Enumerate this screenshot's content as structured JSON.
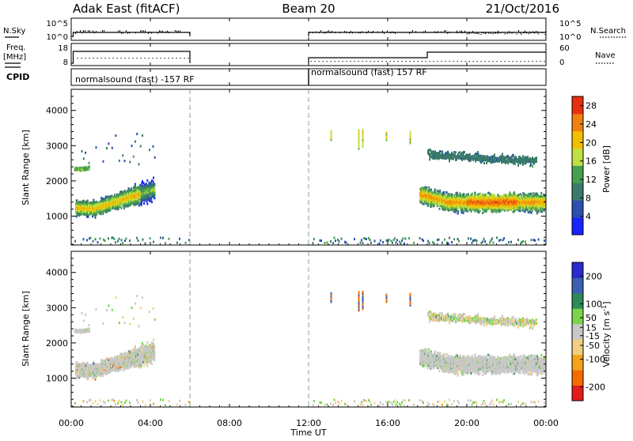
{
  "header": {
    "station": "Adak East (fitACF)",
    "beam": "Beam 20",
    "date": "21/Oct/2016"
  },
  "x_axis": {
    "label": "Time UT",
    "ticks": [
      "00:00",
      "04:00",
      "08:00",
      "12:00",
      "16:00",
      "20:00",
      "00:00"
    ]
  },
  "panels": {
    "nsky": {
      "label": "N.Sky",
      "right_label": "N.Search",
      "left_ticks": [
        "10^5",
        "10^0"
      ],
      "right_ticks": [
        "10^5",
        "10^0"
      ]
    },
    "freq": {
      "label_line1": "Freq.",
      "label_line2": "[MHz]",
      "right_label": "Nave",
      "left_ticks": [
        "18",
        "8"
      ],
      "right_ticks": [
        "60",
        "0"
      ]
    },
    "cpid": {
      "label": "CPID",
      "segments": [
        "normalsound (fast) -157 RF",
        "normalsound (fast) 157 RF"
      ]
    }
  },
  "colors": {
    "power": [
      "#1a22ff",
      "#2a4fb0",
      "#3a7a6a",
      "#46a050",
      "#bfe040",
      "#f2c000",
      "#f08010",
      "#e83010"
    ],
    "velocity": [
      "#e41a1c",
      "#f56b00",
      "#f7a21b",
      "#f0d080",
      "#c8c8c8",
      "#7ad44a",
      "#2e8a57",
      "#3c5fb0",
      "#2a2ad0"
    ]
  },
  "chart_data": [
    {
      "type": "heatmap",
      "name": "Power",
      "ylabel": "Slant Range [km]",
      "xlabel": "Time UT",
      "yticks": [
        1000,
        2000,
        3000,
        4000
      ],
      "ylim": [
        180,
        4600
      ],
      "xlim_hours": [
        0,
        24
      ],
      "colorbar_label": "Power [dB]",
      "colorbar_ticks": [
        4,
        8,
        12,
        16,
        20,
        24,
        28
      ],
      "colorbar_range": [
        0,
        30
      ],
      "echo_regions": [
        {
          "t_start": 0.2,
          "t_end": 4.2,
          "range_center": 1350,
          "range_width": 600,
          "peak_db": 18
        },
        {
          "t_start": 17.6,
          "t_end": 23.9,
          "range_center": 1400,
          "range_width": 500,
          "peak_db": 24
        },
        {
          "t_start": 18.0,
          "t_end": 23.5,
          "range_center": 2750,
          "range_width": 300,
          "peak_db": 10
        }
      ]
    },
    {
      "type": "heatmap",
      "name": "Velocity",
      "ylabel": "Slant Range [km]",
      "xlabel": "Time UT",
      "yticks": [
        1000,
        2000,
        3000,
        4000
      ],
      "ylim": [
        180,
        4600
      ],
      "xlim_hours": [
        0,
        24
      ],
      "colorbar_label": "Velocity [m s^-1]",
      "colorbar_ticks": [
        -200,
        -100,
        -50,
        -15,
        15,
        50,
        100,
        200
      ],
      "colorbar_range": [
        -250,
        250
      ]
    }
  ]
}
